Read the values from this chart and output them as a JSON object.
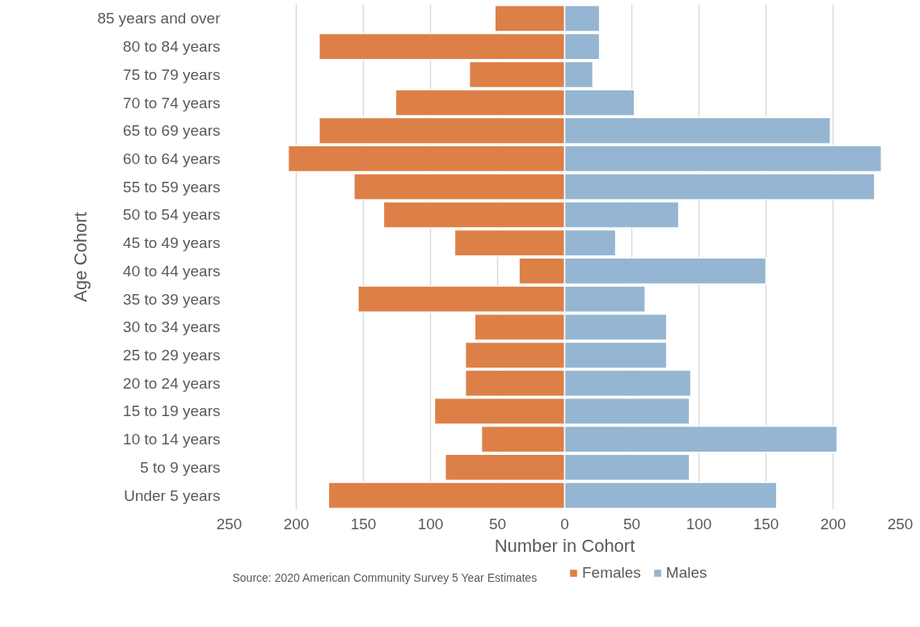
{
  "chart_data": {
    "type": "bar",
    "orientation": "horizontal",
    "stacked": true,
    "xlabel": "Number in Cohort",
    "ylabel": "Age Cohort",
    "categories": [
      "85 years and over",
      "80 to 84 years",
      "75 to 79 years",
      "70 to 74 years",
      "65 to 69 years",
      "60 to 64 years",
      "55 to 59 years",
      "50 to 54 years",
      "45 to 49 years",
      "40 to 44 years",
      "35 to 39 years",
      "30 to 34 years",
      "25 to 29 years",
      "20 to 24 years",
      "15 to 19 years",
      "10 to 14 years",
      "5 to 9 years",
      "Under 5 years"
    ],
    "series": [
      {
        "name": "Females",
        "color": "#dd8047",
        "values": [
          -52,
          -183,
          -71,
          -126,
          -183,
          -206,
          -157,
          -135,
          -82,
          -34,
          -154,
          -67,
          -74,
          -74,
          -97,
          -62,
          -89,
          -176
        ]
      },
      {
        "name": "Males",
        "color": "#94b6d2",
        "values": [
          26,
          26,
          21,
          52,
          198,
          236,
          231,
          85,
          38,
          150,
          60,
          76,
          76,
          94,
          93,
          203,
          93,
          158
        ]
      }
    ],
    "xlim": [
      -250,
      250
    ],
    "xticks": [
      {
        "value": -250,
        "label": "250"
      },
      {
        "value": -200,
        "label": "200"
      },
      {
        "value": -150,
        "label": "150"
      },
      {
        "value": -100,
        "label": "100"
      },
      {
        "value": -50,
        "label": "50"
      },
      0,
      50,
      100,
      150,
      200,
      250
    ],
    "grid": "x",
    "legend": "bottom",
    "annotations": [
      "Source: 2020 American Community Survey 5 Year Estimates"
    ]
  }
}
